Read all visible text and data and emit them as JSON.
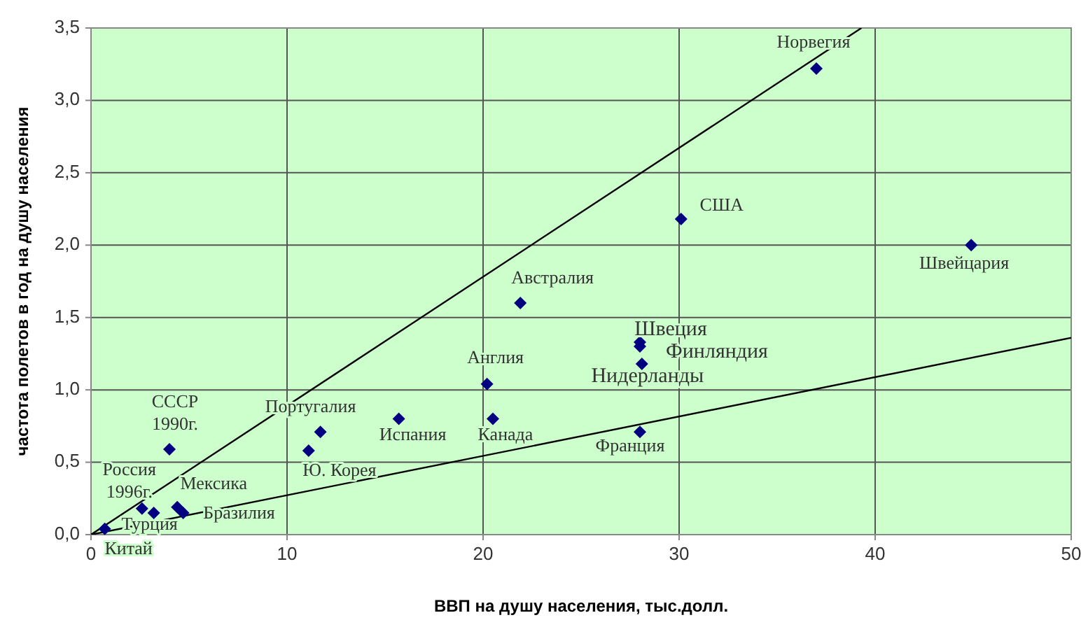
{
  "chart_data": {
    "type": "scatter",
    "xlabel": "ВВП на душу населения, тыс.долл.",
    "ylabel": "частота полетов в год на душу населения",
    "xlim": [
      0,
      50
    ],
    "xticks": [
      0,
      10,
      20,
      30,
      40,
      50
    ],
    "ylim": [
      0,
      3.5
    ],
    "yticks": [
      {
        "value": 0,
        "label": "0,0"
      },
      {
        "value": 0.5,
        "label": "0,5"
      },
      {
        "value": 1,
        "label": "1,0"
      },
      {
        "value": 1.5,
        "label": "1,5"
      },
      {
        "value": 2,
        "label": "2,0"
      },
      {
        "value": 2.5,
        "label": "2,5"
      },
      {
        "value": 3,
        "label": "3,0"
      },
      {
        "value": 3.5,
        "label": "3,5"
      }
    ],
    "grid": true,
    "series": [
      {
        "marker": "diamond",
        "color": "#000080",
        "x": [
          0.7,
          2.6,
          3.2,
          4.4,
          4.7,
          4.0,
          11.1,
          11.7,
          15.7,
          20.2,
          20.5,
          21.9,
          28.0,
          28.0,
          28.1,
          28.0,
          30.1,
          37.0,
          44.9
        ],
        "values": [
          0.04,
          0.18,
          0.15,
          0.19,
          0.15,
          0.59,
          0.58,
          0.71,
          0.8,
          1.04,
          0.8,
          1.6,
          1.33,
          1.3,
          1.18,
          0.71,
          2.18,
          3.22,
          2.0
        ]
      },
      {
        "type": "line",
        "color": "#000000",
        "x": [
          0,
          39.3
        ],
        "values": [
          0,
          3.5
        ]
      },
      {
        "type": "line",
        "color": "#000000",
        "x": [
          0,
          50
        ],
        "values": [
          0,
          1.36
        ]
      }
    ],
    "annotations": [
      {
        "text": "Китай",
        "x": 0.7,
        "y": 0.04
      },
      {
        "text": "Россия\n1996г.",
        "x": 2.6,
        "y": 0.18
      },
      {
        "text": "Турция",
        "x": 3.2,
        "y": 0.15
      },
      {
        "text": "Мексика",
        "x": 4.4,
        "y": 0.19
      },
      {
        "text": "Бразилия",
        "x": 4.7,
        "y": 0.15
      },
      {
        "text": "СССР\n1990г.",
        "x": 4.0,
        "y": 0.59
      },
      {
        "text": "Ю. Корея",
        "x": 11.1,
        "y": 0.58
      },
      {
        "text": "Португалия",
        "x": 11.7,
        "y": 0.71
      },
      {
        "text": "Испания",
        "x": 15.7,
        "y": 0.8
      },
      {
        "text": "Англия",
        "x": 20.2,
        "y": 1.04
      },
      {
        "text": "Канада",
        "x": 20.5,
        "y": 0.8
      },
      {
        "text": "Австралия",
        "x": 21.9,
        "y": 1.6
      },
      {
        "text": "Швеция",
        "x": 28.0,
        "y": 1.33
      },
      {
        "text": "Финляндия",
        "x": 28.0,
        "y": 1.3
      },
      {
        "text": "Нидерланды",
        "x": 28.1,
        "y": 1.18
      },
      {
        "text": "Франция",
        "x": 28.0,
        "y": 0.71
      },
      {
        "text": "США",
        "x": 30.1,
        "y": 2.18
      },
      {
        "text": "Норвегия",
        "x": 37.0,
        "y": 3.22
      },
      {
        "text": "Швейцария",
        "x": 44.9,
        "y": 2.0
      }
    ]
  }
}
